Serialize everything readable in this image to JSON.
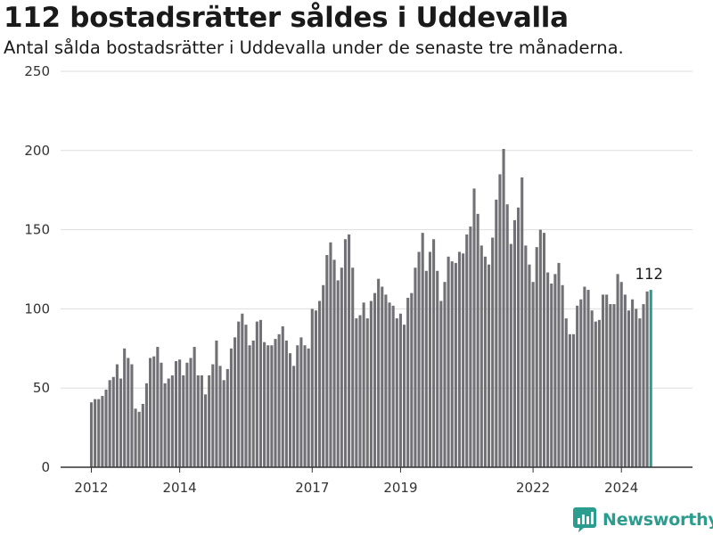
{
  "title": "112 bostadsrätter såldes i Uddevalla",
  "subtitle": "Antal sålda bostadsrätter i Uddevalla under de senaste tre månaderna.",
  "brand": "Newsworthy",
  "colors": {
    "bar": "#717075",
    "highlight": "#2a9d8f",
    "grid": "#dddddd",
    "axis": "#333333"
  },
  "chart_data": {
    "type": "bar",
    "title": "112 bostadsrätter såldes i Uddevalla",
    "subtitle": "Antal sålda bostadsrätter i Uddevalla under de senaste tre månaderna.",
    "xlabel": "",
    "ylabel": "",
    "ylim": [
      0,
      250
    ],
    "yticks": [
      0,
      50,
      100,
      150,
      200,
      250
    ],
    "xticks": [
      "2012",
      "2014",
      "2017",
      "2019",
      "2022",
      "2024"
    ],
    "grid": true,
    "highlighted_last_label": "112",
    "values": [
      41,
      43,
      43,
      45,
      49,
      55,
      57,
      65,
      56,
      75,
      69,
      65,
      37,
      35,
      40,
      53,
      69,
      70,
      76,
      66,
      53,
      56,
      58,
      67,
      68,
      58,
      66,
      69,
      76,
      58,
      58,
      46,
      58,
      65,
      80,
      64,
      55,
      62,
      75,
      82,
      92,
      97,
      90,
      77,
      80,
      92,
      93,
      79,
      77,
      77,
      81,
      84,
      89,
      80,
      72,
      64,
      77,
      82,
      77,
      75,
      100,
      99,
      105,
      115,
      134,
      142,
      131,
      118,
      126,
      144,
      147,
      126,
      94,
      96,
      104,
      94,
      105,
      110,
      119,
      114,
      109,
      104,
      102,
      94,
      97,
      90,
      107,
      110,
      126,
      136,
      148,
      124,
      136,
      144,
      124,
      105,
      117,
      133,
      130,
      129,
      136,
      135,
      147,
      152,
      176,
      160,
      140,
      133,
      128,
      145,
      169,
      185,
      201,
      166,
      141,
      156,
      164,
      183,
      140,
      128,
      117,
      139,
      150,
      148,
      123,
      116,
      122,
      129,
      115,
      94,
      84,
      84,
      102,
      106,
      114,
      112,
      99,
      92,
      93,
      109,
      109,
      103,
      103,
      122,
      117,
      109,
      99,
      106,
      100,
      94,
      103,
      111,
      112
    ]
  }
}
